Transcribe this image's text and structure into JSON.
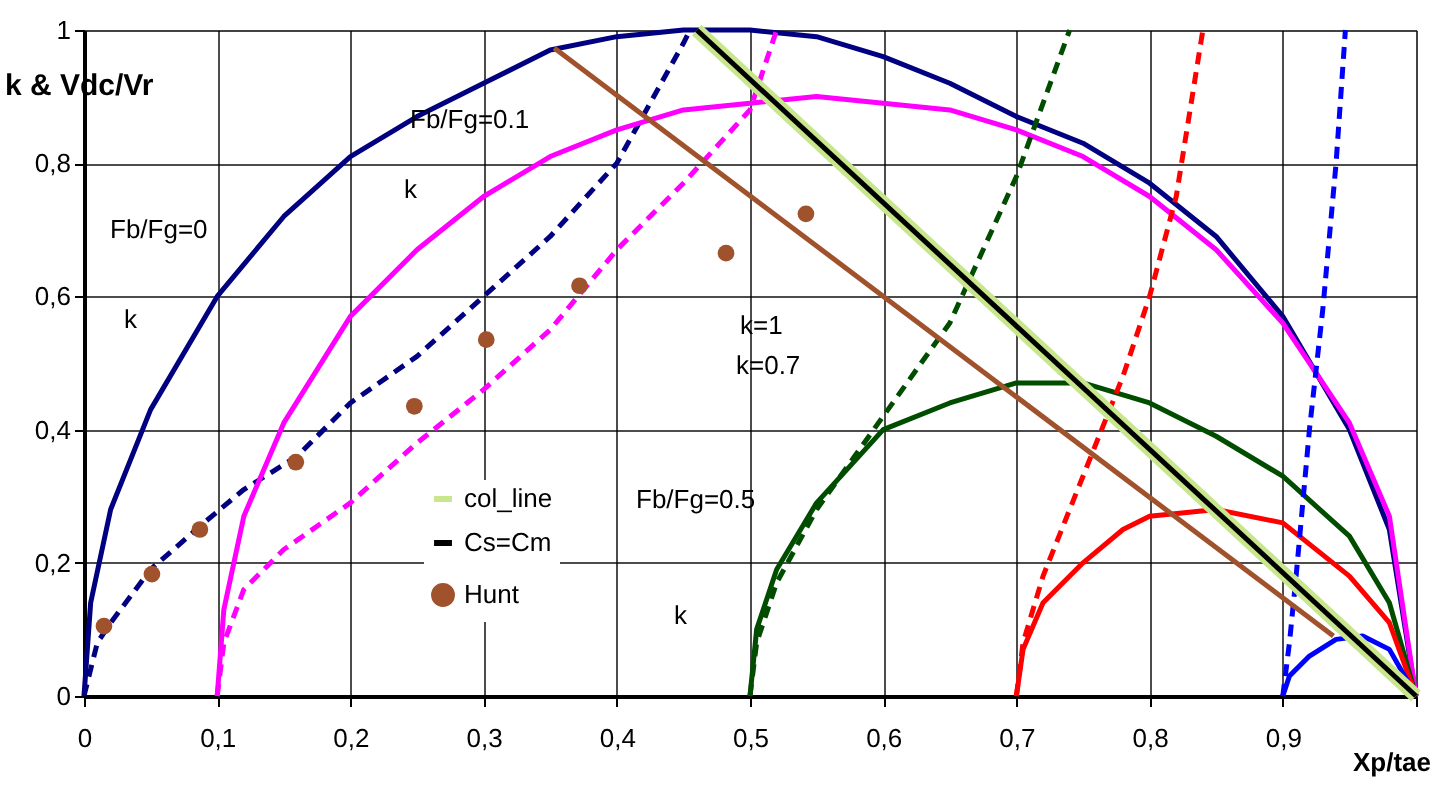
{
  "chart_data": {
    "type": "line",
    "xlabel": "Xp/tae",
    "ylabel": "k & Vdc/Vr",
    "xlim": [
      0,
      1
    ],
    "ylim": [
      0,
      1
    ],
    "xticks": [
      0,
      {
        "value": 0.1,
        "label": "0,1"
      },
      {
        "value": 0.2,
        "label": "0,2"
      },
      {
        "value": 0.3,
        "label": "0,3"
      },
      {
        "value": 0.4,
        "label": "0,4"
      },
      {
        "value": 0.5,
        "label": "0,5"
      },
      {
        "value": 0.6,
        "label": "0,6"
      },
      {
        "value": 0.7,
        "label": "0,7"
      },
      {
        "value": 0.8,
        "label": "0,8"
      },
      {
        "value": 0.9,
        "label": "0,9"
      },
      {
        "value": 1,
        "label": null
      }
    ],
    "yticks": [
      0,
      {
        "value": 0.2,
        "label": "0,2"
      },
      {
        "value": 0.4,
        "label": "0,4"
      },
      {
        "value": 0.6,
        "label": "0,6"
      },
      {
        "value": 0.8,
        "label": "0,8"
      },
      1
    ],
    "grid": true,
    "legend": "bottom left",
    "series": [
      {
        "color": "#000080",
        "line_style": "solid",
        "x": [
          0,
          0.005,
          0.02,
          0.05,
          0.1,
          0.15,
          0.2,
          0.25,
          0.3,
          0.35,
          0.4,
          0.45,
          0.5,
          0.55,
          0.6,
          0.65,
          0.7,
          0.75,
          0.8,
          0.85,
          0.9,
          0.95,
          0.98,
          1
        ],
        "values": [
          0,
          0.14,
          0.28,
          0.43,
          0.6,
          0.72,
          0.81,
          0.87,
          0.92,
          0.97,
          0.99,
          1,
          1,
          0.99,
          0.96,
          0.92,
          0.87,
          0.83,
          0.77,
          0.69,
          0.57,
          0.4,
          0.25,
          0
        ]
      },
      {
        "color": "#000080",
        "line_style": "dashed",
        "x": [
          0,
          0.01,
          0.02,
          0.05,
          0.09,
          0.12,
          0.16,
          0.2,
          0.25,
          0.3,
          0.35,
          0.4,
          0.45,
          0.455
        ],
        "values": [
          0,
          0.08,
          0.11,
          0.19,
          0.26,
          0.31,
          0.36,
          0.44,
          0.51,
          0.6,
          0.69,
          0.8,
          0.98,
          1
        ]
      },
      {
        "color": "#ff00ff",
        "line_style": "solid",
        "x": [
          0.1,
          0.105,
          0.12,
          0.15,
          0.2,
          0.25,
          0.3,
          0.35,
          0.4,
          0.45,
          0.5,
          0.55,
          0.6,
          0.65,
          0.7,
          0.75,
          0.8,
          0.85,
          0.9,
          0.95,
          0.98,
          1
        ],
        "values": [
          0,
          0.13,
          0.27,
          0.41,
          0.57,
          0.67,
          0.75,
          0.81,
          0.85,
          0.88,
          0.89,
          0.9,
          0.89,
          0.88,
          0.85,
          0.81,
          0.75,
          0.67,
          0.56,
          0.41,
          0.27,
          0
        ]
      },
      {
        "color": "#ff00ff",
        "line_style": "dashed",
        "x": [
          0.1,
          0.105,
          0.12,
          0.15,
          0.2,
          0.25,
          0.3,
          0.35,
          0.4,
          0.45,
          0.5,
          0.52
        ],
        "values": [
          0,
          0.08,
          0.16,
          0.22,
          0.29,
          0.38,
          0.46,
          0.55,
          0.67,
          0.77,
          0.88,
          1
        ]
      },
      {
        "color": "#004d00",
        "line_style": "solid",
        "x": [
          0.5,
          0.505,
          0.52,
          0.55,
          0.6,
          0.65,
          0.7,
          0.75,
          0.8,
          0.85,
          0.9,
          0.95,
          0.98,
          1
        ],
        "values": [
          0,
          0.1,
          0.19,
          0.29,
          0.4,
          0.44,
          0.47,
          0.47,
          0.44,
          0.39,
          0.33,
          0.24,
          0.14,
          0
        ]
      },
      {
        "color": "#004d00",
        "line_style": "dashed",
        "x": [
          0.5,
          0.505,
          0.52,
          0.55,
          0.6,
          0.65,
          0.7,
          0.74
        ],
        "values": [
          0,
          0.08,
          0.17,
          0.28,
          0.42,
          0.56,
          0.78,
          1
        ]
      },
      {
        "color": "#ff0000",
        "line_style": "solid",
        "x": [
          0.7,
          0.705,
          0.72,
          0.75,
          0.78,
          0.8,
          0.85,
          0.9,
          0.95,
          0.98,
          1
        ],
        "values": [
          0,
          0.07,
          0.14,
          0.2,
          0.25,
          0.27,
          0.28,
          0.26,
          0.18,
          0.11,
          0
        ]
      },
      {
        "color": "#ff0000",
        "line_style": "dashed",
        "x": [
          0.7,
          0.705,
          0.72,
          0.75,
          0.78,
          0.8,
          0.82,
          0.84
        ],
        "values": [
          0,
          0.08,
          0.18,
          0.33,
          0.48,
          0.6,
          0.75,
          1
        ]
      },
      {
        "color": "#0000ff",
        "line_style": "solid",
        "x": [
          0.9,
          0.905,
          0.92,
          0.94,
          0.96,
          0.98,
          1
        ],
        "values": [
          0,
          0.03,
          0.06,
          0.085,
          0.09,
          0.07,
          0
        ]
      },
      {
        "color": "#0000ff",
        "line_style": "dashed",
        "x": [
          0.9,
          0.905,
          0.91,
          0.92,
          0.93,
          0.94,
          0.947
        ],
        "values": [
          0,
          0.08,
          0.18,
          0.4,
          0.58,
          0.8,
          1
        ]
      },
      {
        "color": "#a0522d",
        "line_style": "solid",
        "x": [
          0.353,
          0.938
        ],
        "values": [
          0.973,
          0.09
        ]
      },
      {
        "name": "col_line",
        "color": "#c8e68c",
        "line_style": "solid",
        "x": [
          0.46,
          1
        ],
        "values": [
          1,
          0
        ]
      },
      {
        "name": "Cs=Cm",
        "color": "#000000",
        "line_style": "solid",
        "x": [
          0.46,
          1
        ],
        "values": [
          1,
          0
        ]
      },
      {
        "type": "scatter",
        "name": "Hunt",
        "color": "#a0522d",
        "marker": "circle",
        "x": [
          0.015,
          0.051,
          0.087,
          0.159,
          0.248,
          0.302,
          0.372,
          0.482,
          0.542
        ],
        "values": [
          0.105,
          0.183,
          0.25,
          0.351,
          0.435,
          0.535,
          0.616,
          0.665,
          0.724
        ]
      }
    ],
    "annotations": [
      "Fb/Fg=0",
      "Fb/Fg=0.1",
      "Fb/Fg=0.5",
      "k",
      "k",
      "k",
      "k=1",
      "k=0.7"
    ]
  }
}
